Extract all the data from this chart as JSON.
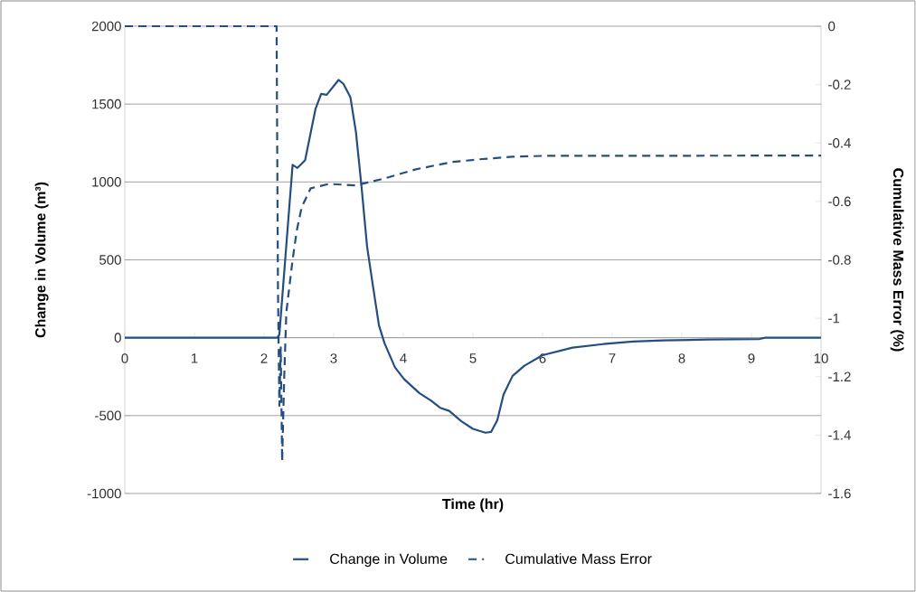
{
  "chart_data": {
    "type": "line",
    "xlabel": "Time (hr)",
    "ylabel": "Change in Volume (m³)",
    "y2label": "Cumulative Mass Error (%)",
    "xlim": [
      0,
      10
    ],
    "xticks": [
      0,
      1,
      2,
      3,
      4,
      5,
      6,
      7,
      8,
      9,
      10
    ],
    "ylim": [
      -1000,
      2000
    ],
    "yticks": [
      -1000,
      -500,
      0,
      500,
      1000,
      1500,
      2000
    ],
    "y2lim": [
      -1.6,
      0
    ],
    "y2ticks": [
      -1.6,
      -1.4,
      -1.2,
      -1,
      -0.8,
      -0.6,
      -0.4,
      -0.2,
      0
    ],
    "grid": "y",
    "legend": "bottom",
    "marker": "none",
    "series": [
      {
        "name": "Change in Volume",
        "color": "#254e80",
        "line_style": "solid",
        "x": [
          0,
          2.19,
          2.22,
          2.41,
          2.48,
          2.59,
          2.74,
          2.82,
          2.9,
          3.07,
          3.14,
          3.24,
          3.32,
          3.4,
          3.48,
          3.57,
          3.65,
          3.73,
          3.88,
          4.01,
          4.23,
          4.4,
          4.53,
          4.66,
          4.83,
          5.0,
          5.18,
          5.26,
          5.35,
          5.44,
          5.57,
          5.74,
          6.0,
          6.43,
          6.87,
          7.3,
          7.73,
          8.38,
          9.12,
          9.2,
          10
        ],
        "values": [
          0,
          0,
          20,
          1110,
          1090,
          1140,
          1470,
          1565,
          1560,
          1655,
          1630,
          1545,
          1320,
          970,
          585,
          315,
          80,
          -35,
          -190,
          -265,
          -355,
          -405,
          -450,
          -470,
          -535,
          -585,
          -610,
          -605,
          -530,
          -365,
          -245,
          -180,
          -112,
          -64,
          -41,
          -25,
          -17,
          -12,
          -8,
          0,
          0
        ]
      },
      {
        "name": "Cumulative Mass Error",
        "color": "#254e80",
        "line_style": "dashed",
        "axis": "y2",
        "x": [
          0,
          2.18,
          2.2,
          2.22,
          2.24,
          2.26,
          2.29,
          2.32,
          2.41,
          2.47,
          2.54,
          2.67,
          2.93,
          3.32,
          3.49,
          3.75,
          4.18,
          4.7,
          5.13,
          5.57,
          6.0,
          10
        ],
        "values": [
          0,
          0,
          -0.9,
          -1.3,
          -1.1,
          -1.49,
          -1.2,
          -0.98,
          -0.8,
          -0.7,
          -0.62,
          -0.555,
          -0.54,
          -0.545,
          -0.535,
          -0.52,
          -0.49,
          -0.465,
          -0.455,
          -0.447,
          -0.444,
          -0.443
        ]
      }
    ]
  }
}
